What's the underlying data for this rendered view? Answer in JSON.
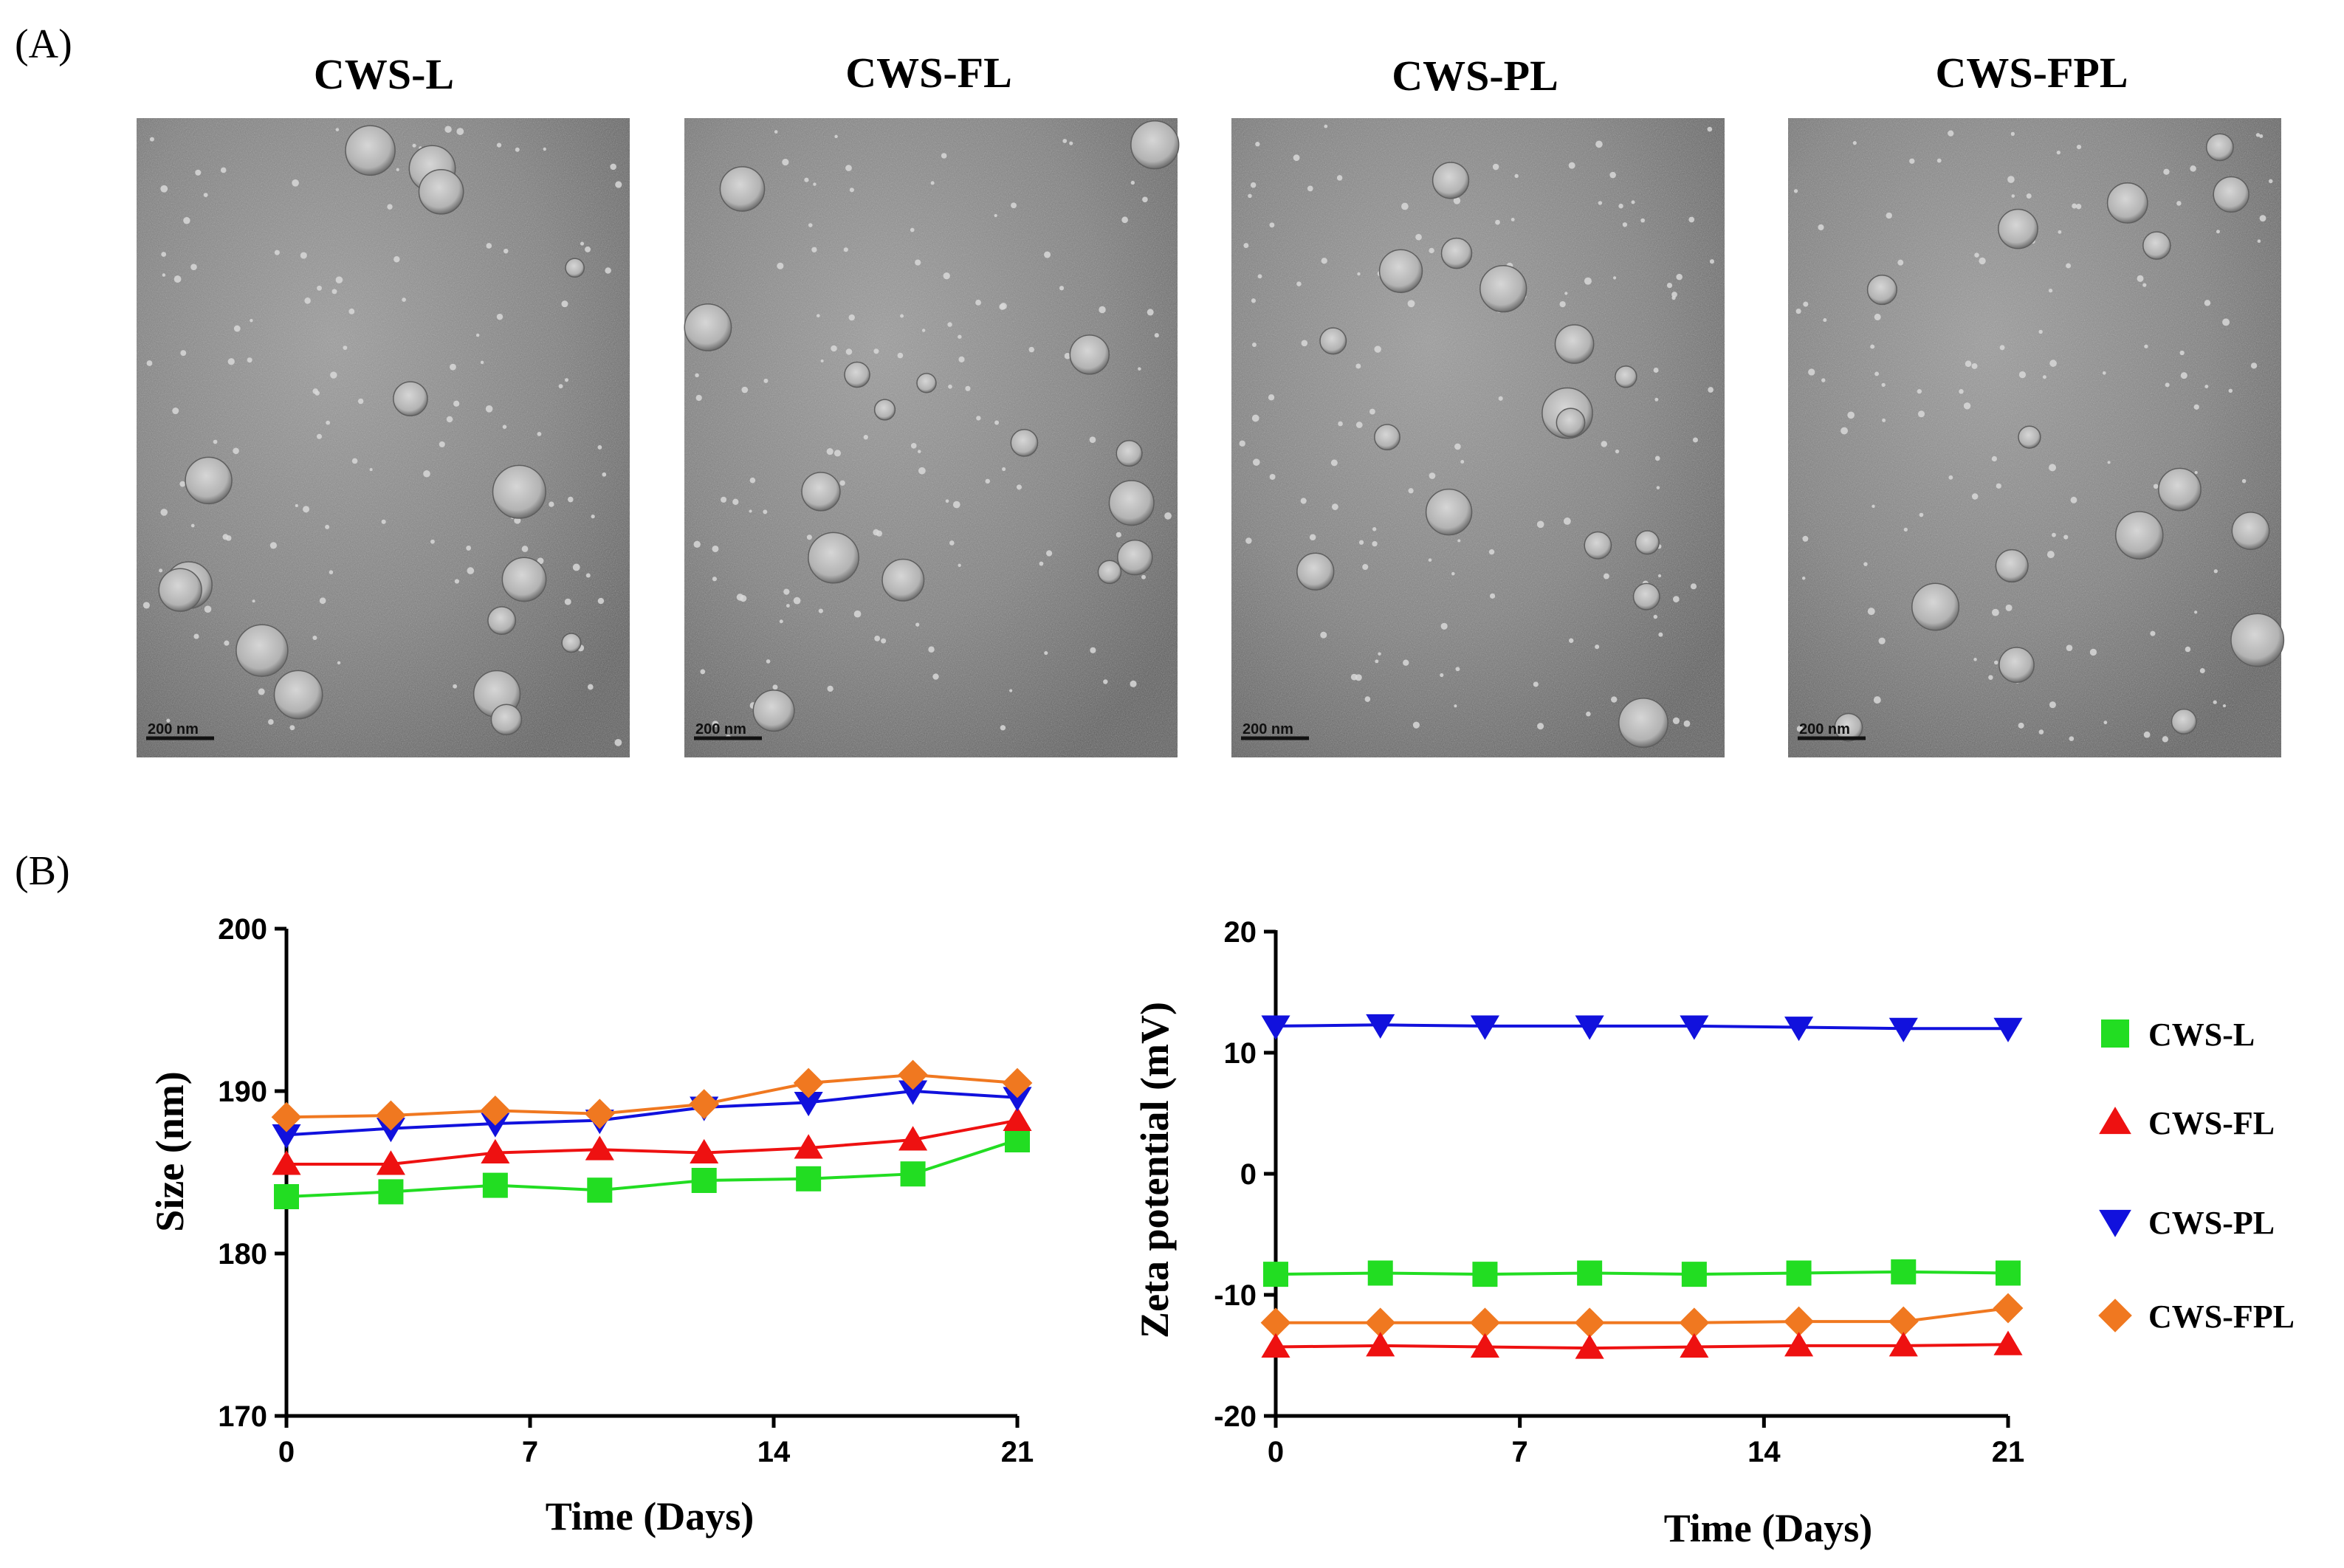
{
  "panel_a": {
    "label": "(A)",
    "images": [
      {
        "title": "CWS-L",
        "scale_bar": "200 nm"
      },
      {
        "title": "CWS-FL",
        "scale_bar": "200 nm"
      },
      {
        "title": "CWS-PL",
        "scale_bar": "200 nm"
      },
      {
        "title": "CWS-FPL",
        "scale_bar": "200 nm"
      }
    ]
  },
  "panel_b": {
    "label": "(B)"
  },
  "colors": {
    "CWS-L": "#22dd22",
    "CWS-FL": "#ee1111",
    "CWS-PL": "#1111dd",
    "CWS-FPL": "#f07820"
  },
  "legend": {
    "entries": [
      {
        "name": "CWS-L",
        "marker": "square"
      },
      {
        "name": "CWS-FL",
        "marker": "triangle-up"
      },
      {
        "name": "CWS-PL",
        "marker": "triangle-down"
      },
      {
        "name": "CWS-FPL",
        "marker": "diamond"
      }
    ]
  },
  "chart_data": [
    {
      "type": "line",
      "title": "",
      "xlabel": "Time (Days)",
      "ylabel": "Size (nm)",
      "x": [
        0,
        3,
        6,
        9,
        12,
        15,
        18,
        21
      ],
      "xticks": [
        "0",
        "7",
        "14",
        "21"
      ],
      "xlim": [
        0,
        21
      ],
      "yticks": [
        "170",
        "180",
        "190",
        "200"
      ],
      "ylim": [
        170,
        200
      ],
      "series": [
        {
          "name": "CWS-L",
          "marker": "square",
          "values": [
            183.5,
            183.8,
            184.2,
            183.9,
            184.5,
            184.6,
            184.9,
            187.0
          ]
        },
        {
          "name": "CWS-FL",
          "marker": "triangle-up",
          "values": [
            185.5,
            185.5,
            186.2,
            186.4,
            186.2,
            186.5,
            187.0,
            188.2
          ]
        },
        {
          "name": "CWS-PL",
          "marker": "triangle-down",
          "values": [
            187.3,
            187.7,
            188.0,
            188.2,
            189.0,
            189.3,
            190.0,
            189.6
          ]
        },
        {
          "name": "CWS-FPL",
          "marker": "diamond",
          "values": [
            188.4,
            188.5,
            188.8,
            188.6,
            189.2,
            190.5,
            191.0,
            190.5
          ]
        }
      ]
    },
    {
      "type": "line",
      "title": "",
      "xlabel": "Time (Days)",
      "ylabel": "Zeta potential (mV)",
      "x": [
        0,
        3,
        6,
        9,
        12,
        15,
        18,
        21
      ],
      "xticks": [
        "0",
        "7",
        "14",
        "21"
      ],
      "xlim": [
        0,
        21
      ],
      "yticks": [
        "-20",
        "-10",
        "0",
        "10",
        "20"
      ],
      "ylim": [
        -20,
        20
      ],
      "series": [
        {
          "name": "CWS-PL",
          "marker": "triangle-down",
          "values": [
            12.2,
            12.3,
            12.2,
            12.2,
            12.2,
            12.1,
            12.0,
            12.0
          ]
        },
        {
          "name": "CWS-L",
          "marker": "square",
          "values": [
            -8.3,
            -8.2,
            -8.3,
            -8.2,
            -8.3,
            -8.2,
            -8.1,
            -8.2
          ]
        },
        {
          "name": "CWS-FPL",
          "marker": "diamond",
          "values": [
            -12.3,
            -12.3,
            -12.3,
            -12.3,
            -12.3,
            -12.2,
            -12.2,
            -11.1
          ]
        },
        {
          "name": "CWS-FL",
          "marker": "triangle-up",
          "values": [
            -14.3,
            -14.2,
            -14.3,
            -14.4,
            -14.3,
            -14.2,
            -14.2,
            -14.1
          ]
        }
      ]
    }
  ]
}
